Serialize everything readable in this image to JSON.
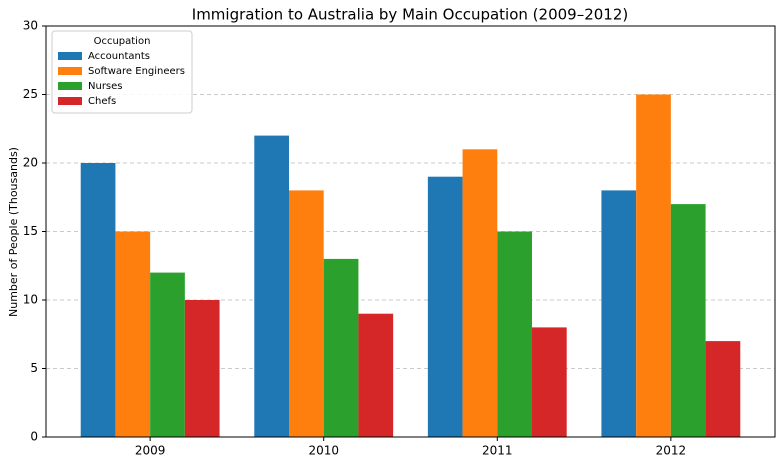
{
  "chart_data": {
    "type": "bar",
    "title": "Immigration to Australia by Main Occupation (2009–2012)",
    "y_label": "Number of People (Thousands)",
    "categories": [
      "2009",
      "2010",
      "2011",
      "2012"
    ],
    "series": [
      {
        "name": "Accountants",
        "color": "#1f77b4",
        "values": [
          20,
          22,
          19,
          18
        ]
      },
      {
        "name": "Software Engineers",
        "color": "#ff7f0e",
        "values": [
          15,
          18,
          21,
          25
        ]
      },
      {
        "name": "Nurses",
        "color": "#2ca02c",
        "values": [
          12,
          13,
          15,
          17
        ]
      },
      {
        "name": "Chefs",
        "color": "#d62728",
        "values": [
          10,
          9,
          8,
          7
        ]
      }
    ],
    "legend_title": "Occupation",
    "legend": "upper left",
    "ylim": [
      0,
      30
    ],
    "yticks": [
      0,
      5,
      10,
      15,
      20,
      25,
      30
    ],
    "grid": true
  }
}
